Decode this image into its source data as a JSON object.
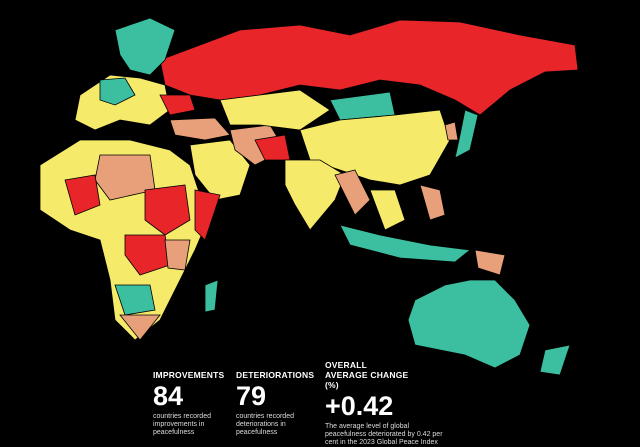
{
  "stats": [
    {
      "heading": "IMPROVEMENTS",
      "number": "84",
      "caption": "countries recorded improvements in peacefulness"
    },
    {
      "heading": "DETERIORATIONS",
      "number": "79",
      "caption": "countries recorded deteriorations in peacefulness"
    },
    {
      "heading": "OVERALL AVERAGE CHANGE (%)",
      "number": "+0.42",
      "caption": "The average level of global peacefulness deteriorated by 0.42 per cent in the 2023 Global Peace Index"
    }
  ]
}
